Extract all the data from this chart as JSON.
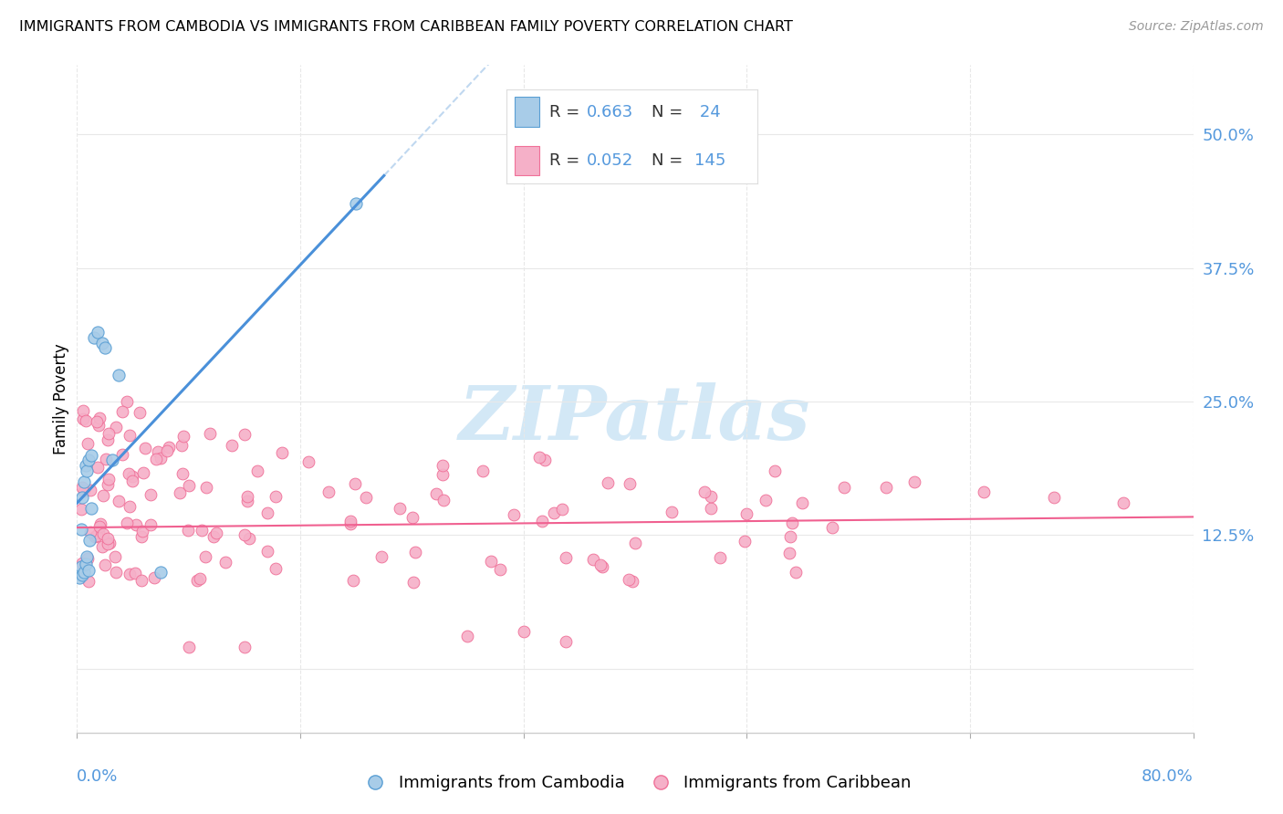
{
  "title": "IMMIGRANTS FROM CAMBODIA VS IMMIGRANTS FROM CARIBBEAN FAMILY POVERTY CORRELATION CHART",
  "source": "Source: ZipAtlas.com",
  "ylabel": "Family Poverty",
  "xlim": [
    0.0,
    0.8
  ],
  "ylim": [
    -0.06,
    0.565
  ],
  "color_cambodia": "#a8cce8",
  "color_caribbean": "#f5b0c8",
  "edge_cambodia": "#5a9fd4",
  "edge_caribbean": "#f07098",
  "line_cambodia": "#4a90d9",
  "line_caribbean": "#f06090",
  "dash_color": "#c0d8f0",
  "watermark_color": "#cce4f5",
  "legend_label1": "Immigrants from Cambodia",
  "legend_label2": "Immigrants from Caribbean"
}
